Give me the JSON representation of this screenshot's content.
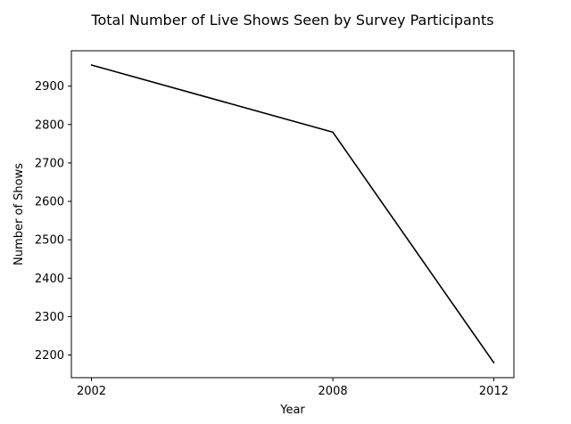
{
  "chart_data": {
    "type": "line",
    "title": "Total Number of Live Shows Seen by Survey Participants",
    "xlabel": "Year",
    "ylabel": "Number of Shows",
    "x": [
      2002,
      2008,
      2012
    ],
    "x_tick_labels": [
      "2002",
      "2008",
      "2012"
    ],
    "y_ticks": [
      2200,
      2300,
      2400,
      2500,
      2600,
      2700,
      2800,
      2900
    ],
    "y_tick_labels": [
      "2200",
      "2300",
      "2400",
      "2500",
      "2600",
      "2700",
      "2800",
      "2900"
    ],
    "ylim": [
      2141,
      2992
    ],
    "series": [
      {
        "values": [
          2955,
          2780,
          2180
        ],
        "color": "#000000"
      }
    ],
    "grid": false,
    "legend": "none"
  }
}
